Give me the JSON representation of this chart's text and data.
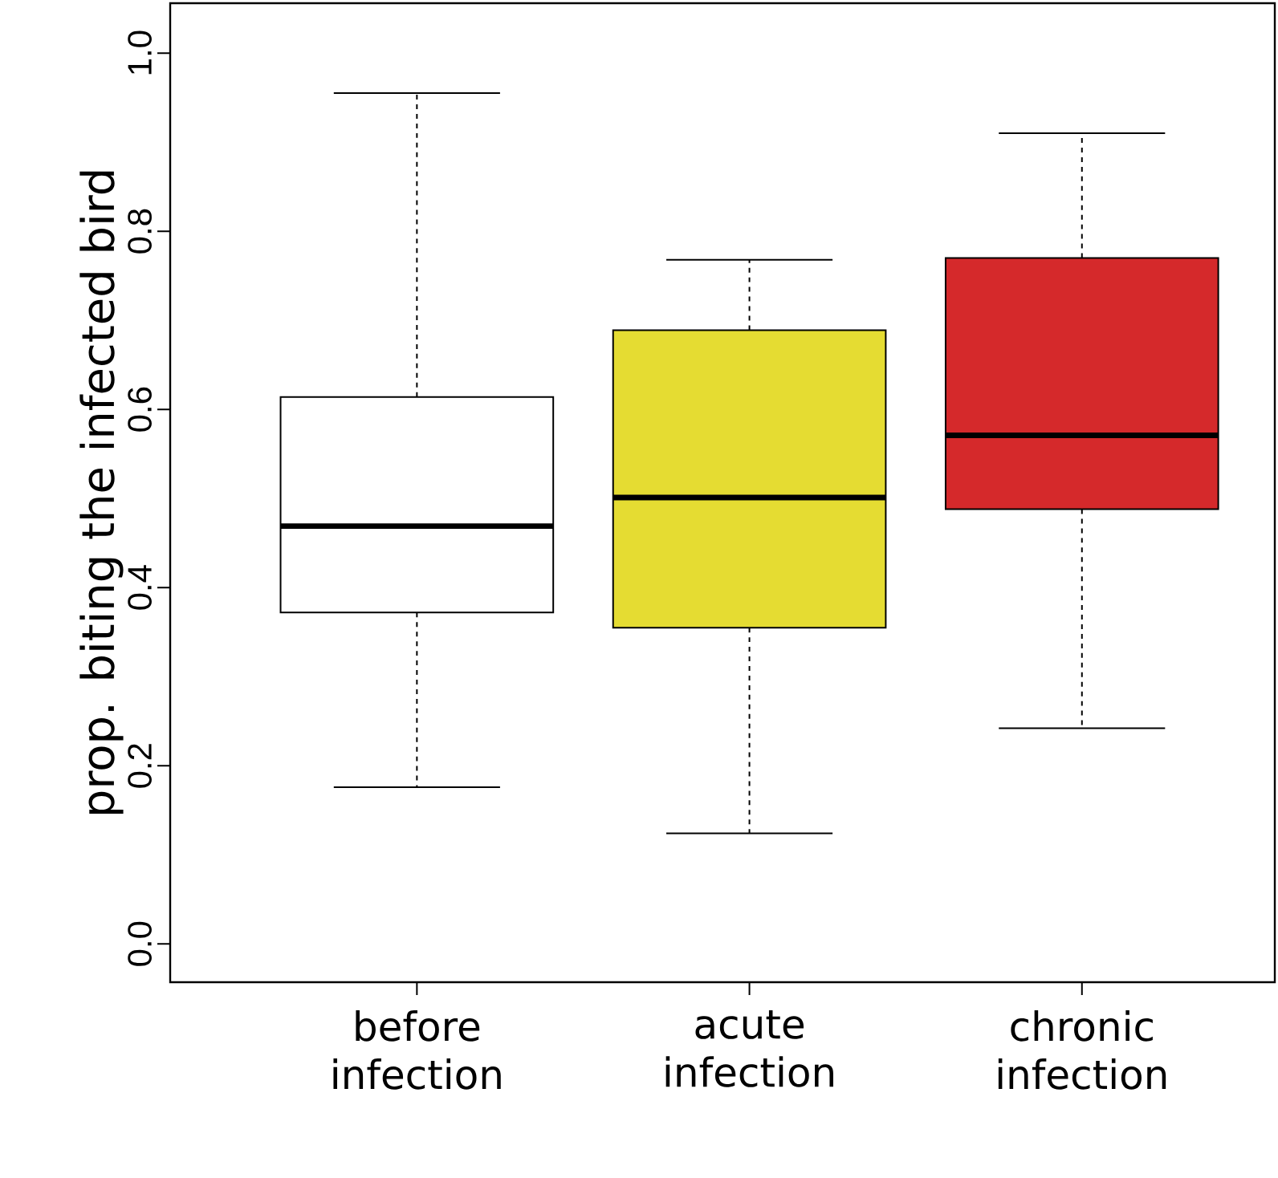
{
  "chart_data": {
    "type": "box",
    "ylabel": "prop. biting the infected bird",
    "categories": [
      "before infection",
      "acute infection",
      "chronic infection"
    ],
    "boxes": [
      {
        "low": 0.176,
        "q1": 0.372,
        "median": 0.469,
        "q3": 0.614,
        "high": 0.955
      },
      {
        "low": 0.124,
        "q1": 0.355,
        "median": 0.501,
        "q3": 0.689,
        "high": 0.768
      },
      {
        "low": 0.242,
        "q1": 0.488,
        "median": 0.571,
        "q3": 0.77,
        "high": 0.91
      }
    ],
    "colors": [
      "#ffffff",
      "#e5dc32",
      "#d5292b"
    ],
    "ylim": [
      -0.043,
      1.056
    ],
    "yticks": [
      {
        "value": 0,
        "label": "0.0"
      },
      {
        "value": 0.2,
        "label": "0.2"
      },
      {
        "value": 0.4,
        "label": "0.4"
      },
      {
        "value": 0.6,
        "label": "0.6"
      },
      {
        "value": 0.8,
        "label": "0.8"
      },
      {
        "value": 1.0,
        "label": "1.0"
      }
    ],
    "grid": false
  }
}
